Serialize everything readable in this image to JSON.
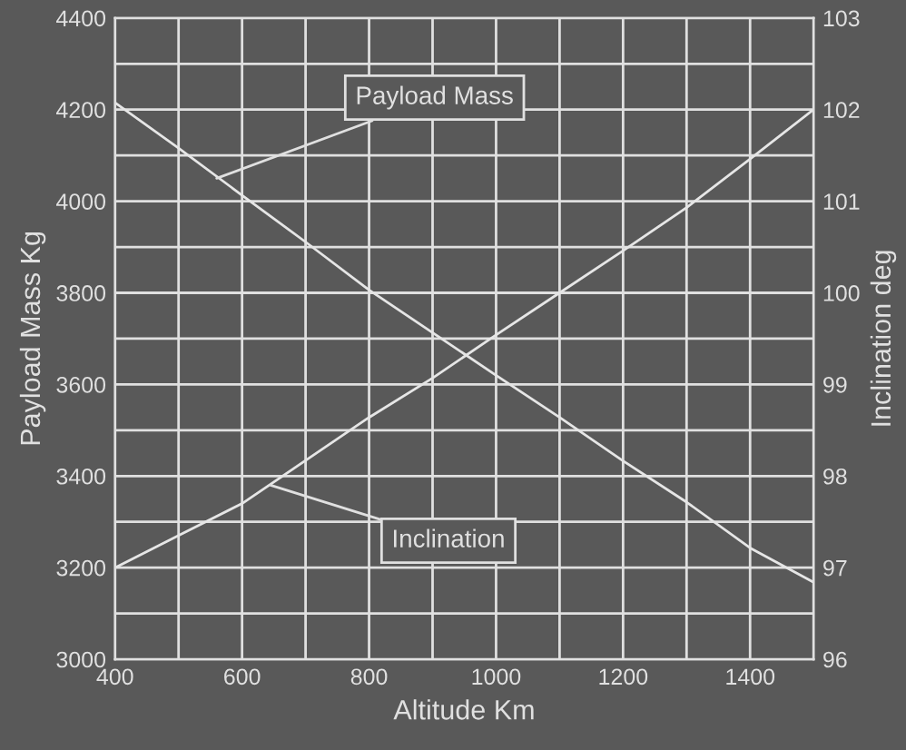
{
  "chart_data": {
    "type": "line",
    "xlabel": "Altitude Km",
    "ylabel": "Payload Mass Kg",
    "y2label": "Inclination deg",
    "x": [
      400,
      500,
      600,
      700,
      800,
      900,
      1000,
      1100,
      1200,
      1300,
      1400,
      1500
    ],
    "series": [
      {
        "color": "#e6e6e6",
        "values": [
          4215,
          4116,
          4013,
          3911,
          3806,
          3713,
          3620,
          3528,
          3433,
          3343,
          3243,
          3168
        ]
      },
      {
        "color": "#e6e6e6",
        "axis": "y2",
        "values": [
          97.0,
          97.35,
          97.7,
          98.17,
          98.64,
          99.07,
          99.54,
          100.0,
          100.46,
          100.93,
          101.46,
          102.0
        ]
      }
    ],
    "xlim": [
      400,
      1500
    ],
    "xticks": [
      400,
      {
        "value": 500,
        "label": null
      },
      600,
      {
        "value": 700,
        "label": null
      },
      800,
      {
        "value": 900,
        "label": null
      },
      1000,
      {
        "value": 1100,
        "label": null
      },
      1200,
      {
        "value": 1300,
        "label": null
      },
      1400,
      {
        "value": 1500,
        "label": null
      }
    ],
    "ylim": [
      3000,
      4400
    ],
    "yticks": [
      3000,
      {
        "value": 3100,
        "label": null
      },
      3200,
      {
        "value": 3300,
        "label": null
      },
      3400,
      {
        "value": 3500,
        "label": null
      },
      3600,
      {
        "value": 3700,
        "label": null
      },
      3800,
      {
        "value": 3900,
        "label": null
      },
      4000,
      {
        "value": 4100,
        "label": null
      },
      4200,
      {
        "value": 4300,
        "label": null
      },
      4400
    ],
    "y2lim": [
      96,
      103
    ],
    "y2ticks": [
      96,
      97,
      98,
      99,
      100,
      101,
      102,
      103
    ],
    "annotations": [
      {
        "text": "Payload Mass",
        "x": 560,
        "y": 4050
      },
      {
        "text": "Inclination",
        "x": 645,
        "y": 3380
      }
    ],
    "grid": true,
    "legend": false,
    "marker": "none",
    "line_style": "solid"
  }
}
